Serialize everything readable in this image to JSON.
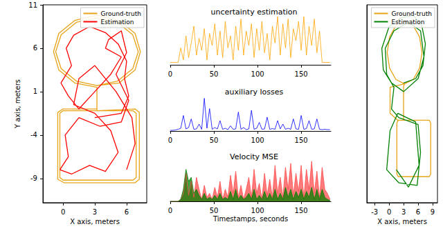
{
  "chart_data": [
    {
      "type": "line",
      "xlabel": "X axis, meters",
      "ylabel": "Y axis, meters",
      "xlim": [
        -1.9,
        7.9
      ],
      "ylim": [
        -11.8,
        11
      ],
      "xticks": [
        0,
        3,
        6
      ],
      "yticks": [
        -9,
        -4,
        1,
        6,
        11
      ],
      "legend": "upper right",
      "series": [
        {
          "name": "Ground-truth",
          "color": "#e8a317",
          "x": [
            3.2,
            5.15,
            6.58,
            7.1,
            6.58,
            5.15,
            3.2,
            1.25,
            -0.18,
            -0.7,
            -0.18,
            1.25,
            3.2,
            5.3,
            6.8,
            7.3,
            6.8,
            5.3,
            3.2,
            1.1,
            -0.4,
            -0.9,
            -0.4,
            1.1,
            3.2,
            3.2,
            6.6,
            6.9,
            6.9,
            6.6,
            0,
            -0.3,
            -0.3,
            0,
            3.2,
            6.8,
            7.2,
            7.2,
            6.8,
            0.1,
            -0.5,
            -0.5,
            0,
            3.2
          ],
          "values": [
            1.7,
            2.22,
            3.65,
            5.6,
            7.55,
            8.98,
            9.5,
            8.98,
            7.55,
            5.6,
            3.65,
            2.22,
            1.7,
            2.0,
            3.5,
            5.6,
            7.7,
            9.2,
            9.8,
            9.2,
            7.7,
            5.6,
            3.5,
            2.0,
            1.5,
            -1.2,
            -1.2,
            -1.5,
            -8.9,
            -9.2,
            -9.2,
            -8.9,
            -1.5,
            -1.2,
            -1.2,
            -1.0,
            -1.4,
            -9.1,
            -9.5,
            -9.5,
            -9.1,
            -1.4,
            -1.0,
            -1.0
          ]
        },
        {
          "name": "Estimation",
          "color": "#ff0000",
          "x": [
            3.0,
            5.5,
            6.2,
            5.8,
            6.0,
            5.2,
            4.0,
            2.5,
            1.0,
            0.3,
            0.8,
            -0.2,
            0.5,
            1.5,
            3.0,
            4.5,
            5.5,
            4.0,
            4.3,
            5.5,
            6.0,
            5.0,
            6.2,
            5.5,
            3.5,
            1.5,
            0.2,
            0.5,
            -0.3,
            0.8,
            2.5,
            4.0,
            5.2,
            4.5,
            3.0,
            1.0,
            1.5,
            3.0,
            5.0,
            6.5,
            6.8,
            6.0
          ],
          "values": [
            -2.0,
            -1.5,
            0.5,
            2.5,
            4.5,
            6.5,
            7.8,
            8.5,
            7.5,
            6.0,
            4.0,
            2.0,
            0.5,
            -1.0,
            1.0,
            3.0,
            5.0,
            6.0,
            7.0,
            8.0,
            5.5,
            3.0,
            0.0,
            -2.5,
            -3.0,
            -2.0,
            -4.0,
            -6.5,
            -8.0,
            -8.5,
            -7.5,
            -8.2,
            -6.0,
            -3.5,
            -1.5,
            -0.5,
            2.5,
            4.0,
            1.0,
            -2.0,
            -5.0,
            -8.0
          ]
        }
      ]
    },
    {
      "type": "line",
      "title": "uncertainty estimation",
      "x": [
        0,
        3,
        6,
        9,
        12,
        15,
        18,
        21,
        24,
        27,
        30,
        33,
        36,
        39,
        42,
        45,
        48,
        51,
        54,
        57,
        60,
        63,
        66,
        69,
        72,
        75,
        78,
        81,
        84,
        87,
        90,
        93,
        96,
        99,
        102,
        105,
        108,
        111,
        114,
        117,
        120,
        123,
        126,
        129,
        132,
        135,
        138,
        141,
        144,
        147,
        150,
        153,
        156,
        159,
        162,
        165,
        168,
        171,
        174,
        177,
        180,
        183
      ],
      "xlim": [
        0,
        184
      ],
      "xticks": [
        0,
        50,
        100,
        150
      ],
      "ylim": [
        0,
        1
      ],
      "tick_labels": "x",
      "series": [
        {
          "color": "#ffa500",
          "values": [
            0.05,
            0.05,
            0.05,
            0.05,
            0.35,
            0.1,
            0.6,
            0.15,
            0.45,
            0.8,
            0.2,
            0.55,
            0.3,
            0.75,
            0.1,
            0.65,
            0.4,
            0.85,
            0.2,
            0.7,
            0.15,
            0.9,
            0.35,
            0.6,
            0.1,
            0.8,
            0.3,
            0.95,
            0.2,
            0.7,
            0.4,
            0.85,
            0.15,
            0.75,
            0.3,
            0.9,
            0.25,
            0.65,
            0.1,
            0.8,
            0.45,
            1.0,
            0.2,
            0.85,
            0.35,
            0.95,
            0.15,
            0.75,
            0.5,
            0.9,
            0.3,
            1.0,
            0.2,
            0.8,
            0.4,
            0.95,
            0.25,
            0.7,
            0.05,
            0.05,
            0.05,
            0.05
          ]
        }
      ]
    },
    {
      "type": "line",
      "title": "auxiliary losses",
      "x": [
        0,
        3,
        6,
        9,
        12,
        15,
        18,
        21,
        24,
        27,
        30,
        33,
        36,
        39,
        42,
        45,
        48,
        51,
        54,
        57,
        60,
        63,
        66,
        69,
        72,
        75,
        78,
        81,
        84,
        87,
        90,
        93,
        96,
        99,
        102,
        105,
        108,
        111,
        114,
        117,
        120,
        123,
        126,
        129,
        132,
        135,
        138,
        141,
        144,
        147,
        150,
        153,
        156,
        159,
        162,
        165,
        168,
        171,
        174,
        177,
        180,
        183
      ],
      "xlim": [
        0,
        184
      ],
      "xticks": [
        0,
        50,
        100,
        150
      ],
      "ylim": [
        0,
        1
      ],
      "tick_labels": "x",
      "series": [
        {
          "color": "#0000ff",
          "values": [
            0.02,
            0.02,
            0.03,
            0.05,
            0.08,
            0.45,
            0.06,
            0.1,
            0.35,
            0.05,
            0.06,
            0.2,
            0.05,
            0.95,
            0.08,
            0.65,
            0.05,
            0.1,
            0.06,
            0.3,
            0.05,
            0.08,
            0.04,
            0.15,
            0.05,
            0.06,
            0.55,
            0.05,
            0.1,
            0.04,
            0.06,
            0.6,
            0.05,
            0.08,
            0.25,
            0.05,
            0.06,
            0.4,
            0.05,
            0.07,
            0.05,
            0.3,
            0.06,
            0.2,
            0.05,
            0.08,
            0.05,
            0.35,
            0.06,
            0.05,
            0.45,
            0.05,
            0.07,
            0.3,
            0.05,
            0.06,
            0.35,
            0.05,
            0.04,
            0.05,
            0.04,
            0.04
          ]
        }
      ]
    },
    {
      "type": "line",
      "title": "Velocity MSE",
      "xlabel": "Timestamps, seconds",
      "x": [
        0,
        3,
        6,
        9,
        12,
        15,
        18,
        21,
        24,
        27,
        30,
        33,
        36,
        39,
        42,
        45,
        48,
        51,
        54,
        57,
        60,
        63,
        66,
        69,
        72,
        75,
        78,
        81,
        84,
        87,
        90,
        93,
        96,
        99,
        102,
        105,
        108,
        111,
        114,
        117,
        120,
        123,
        126,
        129,
        132,
        135,
        138,
        141,
        144,
        147,
        150,
        153,
        156,
        159,
        162,
        165,
        168,
        171,
        174,
        177,
        180,
        183
      ],
      "xlim": [
        0,
        184
      ],
      "xticks": [
        0,
        50,
        100,
        150
      ],
      "ylim": [
        0,
        1
      ],
      "tick_labels": "x",
      "series": [
        {
          "color": "#ff4d4d",
          "values": [
            0,
            0,
            0,
            0,
            0.05,
            0.2,
            0.7,
            0.15,
            0.5,
            0.1,
            0.6,
            0.3,
            0.05,
            0.4,
            0.1,
            0.2,
            0.05,
            0.35,
            0.1,
            0.5,
            0.05,
            0.3,
            0.1,
            0.65,
            0.2,
            0.75,
            0.1,
            0.4,
            0.05,
            0.3,
            0.6,
            0.1,
            0.8,
            0.2,
            0.45,
            0.05,
            0.7,
            0.15,
            0.55,
            0.1,
            0.9,
            0.2,
            0.6,
            0.1,
            0.85,
            0.3,
            0.95,
            0.15,
            0.7,
            0.25,
            0.9,
            0.1,
            0.8,
            0.3,
            1.0,
            0.2,
            0.75,
            0.1,
            0.85,
            0.3,
            0.2,
            0.05
          ]
        },
        {
          "color": "#008000",
          "values": [
            0,
            0,
            0,
            0,
            0.05,
            0.3,
            0.8,
            0.5,
            0.6,
            0.2,
            0.3,
            0.15,
            0.05,
            0.2,
            0.05,
            0.1,
            0.05,
            0.15,
            0.05,
            0.2,
            0.05,
            0.1,
            0.05,
            0.25,
            0.05,
            0.3,
            0.05,
            0.15,
            0.05,
            0.1,
            0.2,
            0.05,
            0.3,
            0.05,
            0.15,
            0.05,
            0.25,
            0.05,
            0.2,
            0.05,
            0.3,
            0.05,
            0.2,
            0.05,
            0.35,
            0.1,
            0.3,
            0.05,
            0.25,
            0.1,
            0.3,
            0.05,
            0.25,
            0.1,
            0.35,
            0.05,
            0.3,
            0.05,
            0.3,
            0.1,
            0.05,
            0.02
          ]
        }
      ]
    },
    {
      "type": "line",
      "xlabel": "X axis, meters",
      "xlim": [
        -4.6,
        10
      ],
      "ylim": [
        -11.8,
        11
      ],
      "xticks": [
        -3,
        0,
        3,
        6,
        9
      ],
      "tick_labels": "x",
      "legend": "upper right",
      "series": [
        {
          "name": "Ground-truth",
          "color": "#e8a317",
          "x": [
            3.2,
            5.0,
            6.3,
            6.8,
            6.3,
            5.0,
            3.2,
            1.4,
            0.1,
            -0.4,
            0.1,
            1.4,
            3.2,
            0.2,
            0.2,
            1.8,
            8.3,
            8.6,
            8.6,
            8.3,
            1.9,
            1.6,
            1.6,
            1.9,
            3.0,
            3.0,
            3.2
          ],
          "values": [
            1.9,
            2.4,
            3.7,
            5.5,
            7.3,
            8.6,
            9.1,
            8.6,
            7.3,
            5.5,
            3.7,
            2.4,
            1.9,
            1.5,
            -1.5,
            -2.3,
            -2.3,
            -2.6,
            -8.5,
            -8.8,
            -8.8,
            -8.5,
            -2.6,
            -2.3,
            -2.3,
            1.6,
            1.9
          ]
        },
        {
          "name": "Estimation",
          "color": "#008000",
          "x": [
            3.0,
            5.5,
            7.0,
            7.5,
            6.8,
            5.0,
            2.5,
            0.0,
            -1.5,
            -1.2,
            0.5,
            3.0,
            6.0,
            7.2,
            6.5,
            4.0,
            1.0,
            -0.8,
            -0.5,
            1.0,
            0.5,
            2.0,
            6.0,
            6.5,
            5.8,
            2.0,
            -0.5,
            0.2,
            1.8,
            5.5,
            6.2,
            4.0,
            1.5
          ],
          "values": [
            2.0,
            2.5,
            4.0,
            6.5,
            8.5,
            9.8,
            9.5,
            8.5,
            6.0,
            3.5,
            2.0,
            1.0,
            2.5,
            5.0,
            8.0,
            9.0,
            8.0,
            6.0,
            3.0,
            1.5,
            -1.0,
            -2.0,
            -2.8,
            -6.0,
            -9.8,
            -9.5,
            -8.0,
            -3.5,
            -1.5,
            -2.5,
            -7.5,
            -10.0,
            -8.0
          ]
        }
      ]
    }
  ]
}
